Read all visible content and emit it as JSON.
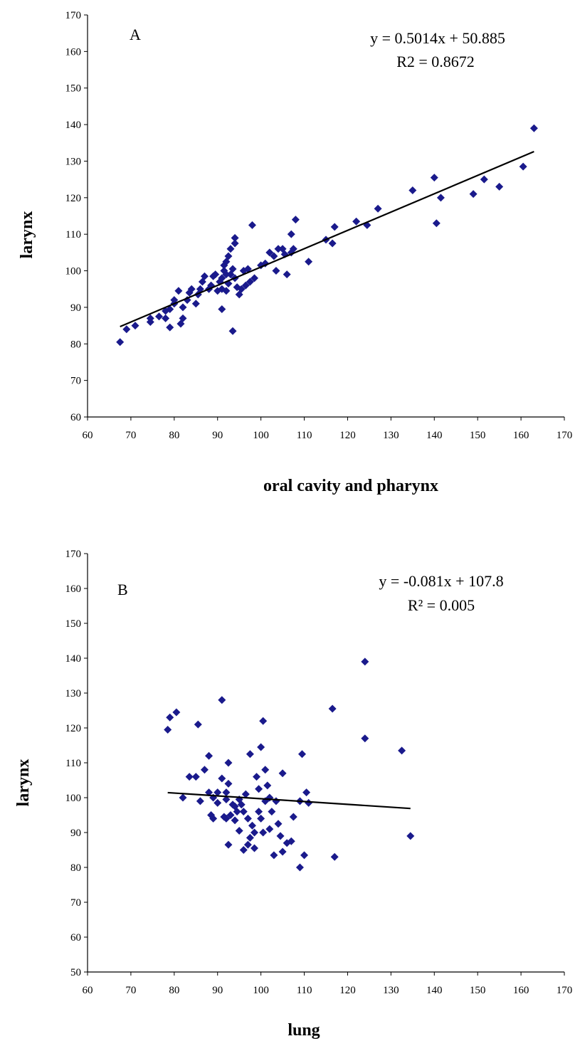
{
  "chart_data": [
    {
      "type": "scatter",
      "panel_label": "A",
      "xlabel": "oral cavity and pharynx",
      "ylabel": "larynx",
      "xlim": [
        60,
        170
      ],
      "ylim": [
        60,
        170
      ],
      "xticks": [
        60,
        70,
        80,
        90,
        100,
        110,
        120,
        130,
        140,
        150,
        160,
        170
      ],
      "yticks": [
        60,
        70,
        80,
        90,
        100,
        110,
        120,
        130,
        140,
        150,
        160,
        170
      ],
      "grid": false,
      "marker_color": "#1a1a8c",
      "equation": "y = 0.5014x + 50.885",
      "r2": "R2 = 0.8672",
      "trendline": {
        "slope": 0.5014,
        "intercept": 50.885,
        "x_range": [
          67.5,
          163
        ]
      },
      "points": [
        [
          67.5,
          80.5
        ],
        [
          69,
          84
        ],
        [
          71,
          85
        ],
        [
          74.5,
          86
        ],
        [
          74.5,
          87
        ],
        [
          76.5,
          87.5
        ],
        [
          78,
          87
        ],
        [
          78,
          89
        ],
        [
          79,
          89.5
        ],
        [
          79,
          84.5
        ],
        [
          80,
          91
        ],
        [
          80,
          92
        ],
        [
          81,
          94.5
        ],
        [
          81.5,
          85.5
        ],
        [
          82,
          87
        ],
        [
          82,
          90
        ],
        [
          83,
          92
        ],
        [
          83.5,
          94
        ],
        [
          84,
          95
        ],
        [
          85,
          91
        ],
        [
          85.5,
          93.5
        ],
        [
          86,
          95
        ],
        [
          86.5,
          97
        ],
        [
          87,
          98.5
        ],
        [
          88,
          95
        ],
        [
          88.5,
          96
        ],
        [
          89,
          98.5
        ],
        [
          89.5,
          99
        ],
        [
          90,
          94.5
        ],
        [
          90.5,
          97
        ],
        [
          91,
          95
        ],
        [
          91,
          89.5
        ],
        [
          91,
          98
        ],
        [
          91.5,
          100
        ],
        [
          91.5,
          101.5
        ],
        [
          92,
          102.5
        ],
        [
          92,
          99
        ],
        [
          92,
          94.5
        ],
        [
          92.5,
          96.5
        ],
        [
          92.5,
          104
        ],
        [
          93,
          106
        ],
        [
          93,
          99
        ],
        [
          93.5,
          100.5
        ],
        [
          93.5,
          83.5
        ],
        [
          94,
          107.5
        ],
        [
          94,
          109
        ],
        [
          94,
          98
        ],
        [
          94.5,
          95.5
        ],
        [
          95,
          93.5
        ],
        [
          95.5,
          95
        ],
        [
          96,
          100
        ],
        [
          96.5,
          96
        ],
        [
          97,
          100.5
        ],
        [
          97.5,
          97
        ],
        [
          98,
          112.5
        ],
        [
          98.5,
          98
        ],
        [
          100,
          101.5
        ],
        [
          101,
          102
        ],
        [
          102,
          105
        ],
        [
          103,
          104
        ],
        [
          103.5,
          100
        ],
        [
          104,
          106
        ],
        [
          105,
          106
        ],
        [
          105.5,
          104.5
        ],
        [
          106,
          99
        ],
        [
          107,
          105
        ],
        [
          107,
          110
        ],
        [
          107.5,
          106
        ],
        [
          108,
          114
        ],
        [
          111,
          102.5
        ],
        [
          115,
          108.5
        ],
        [
          116.5,
          107.5
        ],
        [
          117,
          112
        ],
        [
          122,
          113.5
        ],
        [
          124.5,
          112.5
        ],
        [
          127,
          117
        ],
        [
          135,
          122
        ],
        [
          140,
          125.5
        ],
        [
          140.5,
          113
        ],
        [
          141.5,
          120
        ],
        [
          149,
          121
        ],
        [
          151.5,
          125
        ],
        [
          155,
          123
        ],
        [
          160.5,
          128.5
        ],
        [
          163,
          139
        ]
      ]
    },
    {
      "type": "scatter",
      "panel_label": "B",
      "xlabel": "lung",
      "ylabel": "larynx",
      "xlim": [
        60,
        170
      ],
      "ylim": [
        50,
        170
      ],
      "xticks": [
        60,
        70,
        80,
        90,
        100,
        110,
        120,
        130,
        140,
        150,
        160,
        170
      ],
      "yticks": [
        50,
        60,
        70,
        80,
        90,
        100,
        110,
        120,
        130,
        140,
        150,
        160,
        170
      ],
      "grid": false,
      "marker_color": "#1a1a8c",
      "equation": "y = -0.081x + 107.8",
      "r2": "R² = 0.005",
      "trendline": {
        "slope": -0.081,
        "intercept": 107.8,
        "x_range": [
          78.5,
          134.5
        ]
      },
      "points": [
        [
          78.5,
          119.5
        ],
        [
          79,
          123
        ],
        [
          80.5,
          124.5
        ],
        [
          82,
          100
        ],
        [
          83.5,
          106
        ],
        [
          85,
          106
        ],
        [
          85.5,
          121
        ],
        [
          86,
          99
        ],
        [
          87,
          108
        ],
        [
          88,
          112
        ],
        [
          88,
          101.5
        ],
        [
          88.5,
          95
        ],
        [
          89,
          94
        ],
        [
          89,
          100
        ],
        [
          90,
          101.5
        ],
        [
          90,
          98.5
        ],
        [
          91,
          128
        ],
        [
          91,
          105.5
        ],
        [
          91.5,
          94.5
        ],
        [
          92,
          101.5
        ],
        [
          92,
          94
        ],
        [
          92,
          99.5
        ],
        [
          92.5,
          104
        ],
        [
          92.5,
          110
        ],
        [
          92.5,
          86.5
        ],
        [
          93,
          95
        ],
        [
          93.5,
          98
        ],
        [
          94,
          93.5
        ],
        [
          94,
          97.5
        ],
        [
          94.5,
          96
        ],
        [
          95,
          99.5
        ],
        [
          95,
          90.5
        ],
        [
          95.5,
          98
        ],
        [
          96,
          96
        ],
        [
          96,
          85
        ],
        [
          96.5,
          101
        ],
        [
          97,
          94
        ],
        [
          97,
          86.5
        ],
        [
          97.5,
          88.5
        ],
        [
          97.5,
          112.5
        ],
        [
          98,
          92
        ],
        [
          98.5,
          90
        ],
        [
          98.5,
          85.5
        ],
        [
          99,
          106
        ],
        [
          99.5,
          102.5
        ],
        [
          99.5,
          96
        ],
        [
          100,
          114.5
        ],
        [
          100,
          94
        ],
        [
          100.5,
          90
        ],
        [
          100.5,
          122
        ],
        [
          101,
          108
        ],
        [
          101,
          99
        ],
        [
          101.5,
          103.5
        ],
        [
          102,
          100
        ],
        [
          102,
          91
        ],
        [
          102.5,
          96
        ],
        [
          103,
          83.5
        ],
        [
          103.5,
          99
        ],
        [
          104,
          92.5
        ],
        [
          104.5,
          89
        ],
        [
          105,
          84.5
        ],
        [
          105,
          107
        ],
        [
          106,
          87
        ],
        [
          107,
          87.5
        ],
        [
          107.5,
          94.5
        ],
        [
          109,
          80
        ],
        [
          109,
          99
        ],
        [
          109.5,
          112.5
        ],
        [
          110,
          83.5
        ],
        [
          110.5,
          101.5
        ],
        [
          111,
          98.5
        ],
        [
          116.5,
          125.5
        ],
        [
          117,
          83
        ],
        [
          124,
          117
        ],
        [
          124,
          139
        ],
        [
          132.5,
          113.5
        ],
        [
          134.5,
          89
        ]
      ]
    }
  ]
}
